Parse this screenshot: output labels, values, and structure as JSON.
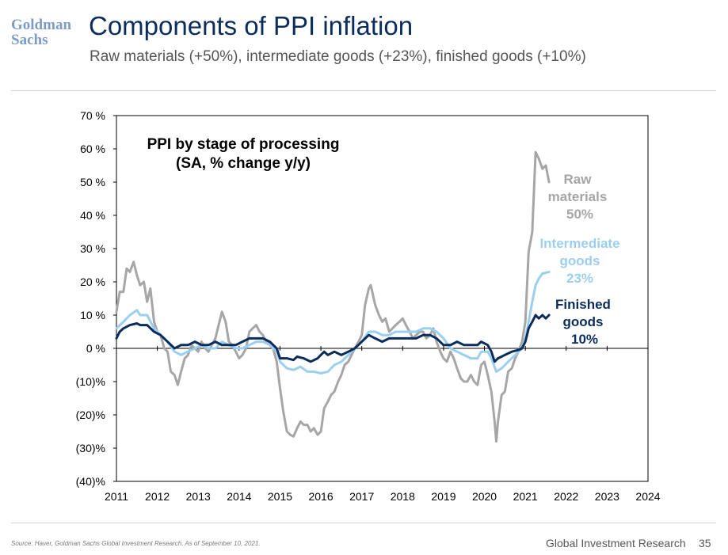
{
  "header": {
    "logo_line1": "Goldman",
    "logo_line2": "Sachs",
    "title": "Components of PPI inflation",
    "subtitle": "Raw materials (+50%), intermediate goods (+23%), finished goods (+10%)"
  },
  "footer": {
    "source": "Source: Haver, Goldman Sachs Global Investment Research. As of September 10, 2021.",
    "division": "Global Investment Research",
    "page_number": "35"
  },
  "colors": {
    "raw": "#a6a6a6",
    "intermediate": "#9ccfef",
    "finished": "#0b2d5c"
  },
  "chart_data": {
    "type": "line",
    "title_lines": [
      "PPI by stage of processing",
      "(SA, % change y/y)"
    ],
    "x_ticks": [
      "2011",
      "2012",
      "2013",
      "2014",
      "2015",
      "2016",
      "2017",
      "2018",
      "2019",
      "2020",
      "2021",
      "2022",
      "2023",
      "2024"
    ],
    "xlim": [
      2011,
      2024
    ],
    "y_ticks": [
      {
        "value": 70,
        "label": "70 %"
      },
      {
        "value": 60,
        "label": "60 %"
      },
      {
        "value": 50,
        "label": "50 %"
      },
      {
        "value": 40,
        "label": "40 %"
      },
      {
        "value": 30,
        "label": "30 %"
      },
      {
        "value": 20,
        "label": "20 %"
      },
      {
        "value": 10,
        "label": "10 %"
      },
      {
        "value": 0,
        "label": "0 %"
      },
      {
        "value": -10,
        "label": "(10)%"
      },
      {
        "value": -20,
        "label": "(20)%"
      },
      {
        "value": -30,
        "label": "(30)%"
      },
      {
        "value": -40,
        "label": "(40)%"
      }
    ],
    "ylim": [
      -40,
      70
    ],
    "series": [
      {
        "key": "raw",
        "label_lines": [
          "Raw",
          "materials",
          "50%"
        ],
        "points": [
          [
            2011.0,
            11
          ],
          [
            2011.08,
            17
          ],
          [
            2011.17,
            17
          ],
          [
            2011.25,
            24
          ],
          [
            2011.33,
            23
          ],
          [
            2011.42,
            26
          ],
          [
            2011.5,
            22
          ],
          [
            2011.58,
            19
          ],
          [
            2011.67,
            20
          ],
          [
            2011.75,
            14
          ],
          [
            2011.83,
            18
          ],
          [
            2011.92,
            8
          ],
          [
            2012.0,
            5
          ],
          [
            2012.08,
            4
          ],
          [
            2012.17,
            0
          ],
          [
            2012.25,
            -1
          ],
          [
            2012.33,
            -7
          ],
          [
            2012.42,
            -8
          ],
          [
            2012.5,
            -11
          ],
          [
            2012.58,
            -7
          ],
          [
            2012.67,
            -3
          ],
          [
            2012.75,
            -2
          ],
          [
            2012.83,
            1
          ],
          [
            2012.92,
            0
          ],
          [
            2013.0,
            -1
          ],
          [
            2013.08,
            2
          ],
          [
            2013.17,
            0
          ],
          [
            2013.25,
            -1
          ],
          [
            2013.33,
            1
          ],
          [
            2013.42,
            3
          ],
          [
            2013.5,
            7
          ],
          [
            2013.58,
            11
          ],
          [
            2013.67,
            8
          ],
          [
            2013.75,
            2
          ],
          [
            2013.83,
            1
          ],
          [
            2013.92,
            -1
          ],
          [
            2014.0,
            -3
          ],
          [
            2014.08,
            -2
          ],
          [
            2014.17,
            0
          ],
          [
            2014.25,
            5
          ],
          [
            2014.33,
            6
          ],
          [
            2014.42,
            7
          ],
          [
            2014.5,
            5
          ],
          [
            2014.58,
            4
          ],
          [
            2014.67,
            2
          ],
          [
            2014.75,
            1
          ],
          [
            2014.83,
            0
          ],
          [
            2014.92,
            -4
          ],
          [
            2015.0,
            -12
          ],
          [
            2015.08,
            -19
          ],
          [
            2015.17,
            -25
          ],
          [
            2015.25,
            -26
          ],
          [
            2015.33,
            -26.5
          ],
          [
            2015.42,
            -24
          ],
          [
            2015.5,
            -22
          ],
          [
            2015.58,
            -23
          ],
          [
            2015.67,
            -23
          ],
          [
            2015.75,
            -25
          ],
          [
            2015.83,
            -24
          ],
          [
            2015.92,
            -26
          ],
          [
            2016.0,
            -25
          ],
          [
            2016.08,
            -18
          ],
          [
            2016.17,
            -16
          ],
          [
            2016.25,
            -14
          ],
          [
            2016.33,
            -13
          ],
          [
            2016.42,
            -10
          ],
          [
            2016.5,
            -8
          ],
          [
            2016.58,
            -5
          ],
          [
            2016.67,
            -4
          ],
          [
            2016.75,
            -2
          ],
          [
            2016.83,
            0
          ],
          [
            2016.92,
            2
          ],
          [
            2017.0,
            4
          ],
          [
            2017.08,
            13
          ],
          [
            2017.17,
            18
          ],
          [
            2017.22,
            19
          ],
          [
            2017.33,
            13
          ],
          [
            2017.42,
            10
          ],
          [
            2017.5,
            8
          ],
          [
            2017.58,
            9
          ],
          [
            2017.67,
            5
          ],
          [
            2017.75,
            6
          ],
          [
            2017.83,
            7
          ],
          [
            2017.92,
            8
          ],
          [
            2018.0,
            9
          ],
          [
            2018.08,
            7
          ],
          [
            2018.17,
            5
          ],
          [
            2018.25,
            3
          ],
          [
            2018.33,
            4
          ],
          [
            2018.42,
            5
          ],
          [
            2018.5,
            5
          ],
          [
            2018.58,
            3
          ],
          [
            2018.67,
            4
          ],
          [
            2018.75,
            6
          ],
          [
            2018.83,
            2
          ],
          [
            2018.92,
            -1
          ],
          [
            2019.0,
            -3
          ],
          [
            2019.08,
            -4
          ],
          [
            2019.17,
            -1
          ],
          [
            2019.25,
            -3
          ],
          [
            2019.33,
            -6
          ],
          [
            2019.42,
            -9
          ],
          [
            2019.5,
            -10
          ],
          [
            2019.58,
            -10
          ],
          [
            2019.67,
            -8
          ],
          [
            2019.75,
            -10
          ],
          [
            2019.83,
            -11
          ],
          [
            2019.92,
            -5
          ],
          [
            2020.0,
            -4
          ],
          [
            2020.08,
            -8
          ],
          [
            2020.17,
            -13
          ],
          [
            2020.25,
            -22
          ],
          [
            2020.29,
            -28
          ],
          [
            2020.33,
            -22
          ],
          [
            2020.42,
            -14
          ],
          [
            2020.5,
            -13
          ],
          [
            2020.58,
            -7
          ],
          [
            2020.67,
            -6
          ],
          [
            2020.75,
            -3
          ],
          [
            2020.83,
            -1
          ],
          [
            2020.92,
            2
          ],
          [
            2021.0,
            8
          ],
          [
            2021.08,
            29
          ],
          [
            2021.17,
            35
          ],
          [
            2021.25,
            59
          ],
          [
            2021.33,
            57
          ],
          [
            2021.42,
            54
          ],
          [
            2021.5,
            55
          ],
          [
            2021.58,
            50
          ]
        ]
      },
      {
        "key": "intermediate",
        "label_lines": [
          "Intermediate",
          "goods",
          "23%"
        ],
        "points": [
          [
            2011.0,
            6
          ],
          [
            2011.17,
            8
          ],
          [
            2011.33,
            10
          ],
          [
            2011.5,
            11.5
          ],
          [
            2011.58,
            10
          ],
          [
            2011.75,
            10
          ],
          [
            2011.92,
            6
          ],
          [
            2012.08,
            4
          ],
          [
            2012.25,
            2
          ],
          [
            2012.42,
            -1
          ],
          [
            2012.58,
            -2
          ],
          [
            2012.75,
            -1
          ],
          [
            2012.92,
            0
          ],
          [
            2013.08,
            1
          ],
          [
            2013.25,
            0
          ],
          [
            2013.42,
            0
          ],
          [
            2013.58,
            2
          ],
          [
            2013.75,
            1
          ],
          [
            2013.92,
            0
          ],
          [
            2014.08,
            0
          ],
          [
            2014.25,
            1
          ],
          [
            2014.42,
            2
          ],
          [
            2014.58,
            2
          ],
          [
            2014.75,
            1
          ],
          [
            2014.92,
            -1
          ],
          [
            2015.0,
            -4
          ],
          [
            2015.17,
            -6
          ],
          [
            2015.33,
            -6.5
          ],
          [
            2015.5,
            -5.5
          ],
          [
            2015.67,
            -7
          ],
          [
            2015.83,
            -7
          ],
          [
            2016.0,
            -7.5
          ],
          [
            2016.17,
            -7
          ],
          [
            2016.33,
            -5
          ],
          [
            2016.5,
            -4
          ],
          [
            2016.67,
            -2
          ],
          [
            2016.83,
            0
          ],
          [
            2017.0,
            2
          ],
          [
            2017.17,
            5
          ],
          [
            2017.33,
            5
          ],
          [
            2017.5,
            4
          ],
          [
            2017.67,
            4
          ],
          [
            2017.83,
            5
          ],
          [
            2018.0,
            5
          ],
          [
            2018.17,
            5
          ],
          [
            2018.33,
            5
          ],
          [
            2018.5,
            6
          ],
          [
            2018.67,
            6
          ],
          [
            2018.83,
            5
          ],
          [
            2019.0,
            3
          ],
          [
            2019.17,
            0
          ],
          [
            2019.33,
            -1
          ],
          [
            2019.5,
            -2
          ],
          [
            2019.67,
            -3
          ],
          [
            2019.83,
            -3
          ],
          [
            2019.92,
            -1
          ],
          [
            2020.08,
            -1
          ],
          [
            2020.17,
            -3
          ],
          [
            2020.29,
            -7
          ],
          [
            2020.42,
            -6
          ],
          [
            2020.58,
            -4
          ],
          [
            2020.75,
            -2
          ],
          [
            2020.92,
            0
          ],
          [
            2021.0,
            3
          ],
          [
            2021.08,
            8
          ],
          [
            2021.17,
            14
          ],
          [
            2021.25,
            19
          ],
          [
            2021.33,
            21
          ],
          [
            2021.42,
            22.5
          ],
          [
            2021.58,
            23
          ]
        ]
      },
      {
        "key": "finished",
        "label_lines": [
          "Finished",
          "goods",
          "10%"
        ],
        "points": [
          [
            2011.0,
            3
          ],
          [
            2011.08,
            5
          ],
          [
            2011.17,
            6
          ],
          [
            2011.33,
            7
          ],
          [
            2011.5,
            7.5
          ],
          [
            2011.58,
            7
          ],
          [
            2011.75,
            7
          ],
          [
            2011.92,
            5
          ],
          [
            2012.08,
            4
          ],
          [
            2012.25,
            2
          ],
          [
            2012.42,
            0
          ],
          [
            2012.58,
            1
          ],
          [
            2012.75,
            1
          ],
          [
            2012.92,
            2
          ],
          [
            2013.08,
            1
          ],
          [
            2013.25,
            1
          ],
          [
            2013.42,
            2
          ],
          [
            2013.58,
            1
          ],
          [
            2013.75,
            1
          ],
          [
            2013.92,
            1
          ],
          [
            2014.08,
            2
          ],
          [
            2014.25,
            3
          ],
          [
            2014.42,
            3
          ],
          [
            2014.58,
            3
          ],
          [
            2014.75,
            2
          ],
          [
            2014.92,
            0
          ],
          [
            2015.0,
            -3
          ],
          [
            2015.17,
            -3
          ],
          [
            2015.33,
            -3.5
          ],
          [
            2015.42,
            -2.5
          ],
          [
            2015.58,
            -3
          ],
          [
            2015.75,
            -4
          ],
          [
            2015.92,
            -3
          ],
          [
            2016.08,
            -1
          ],
          [
            2016.17,
            -2
          ],
          [
            2016.33,
            -1
          ],
          [
            2016.5,
            -2
          ],
          [
            2016.67,
            -1
          ],
          [
            2016.83,
            0
          ],
          [
            2017.0,
            2
          ],
          [
            2017.17,
            4
          ],
          [
            2017.33,
            3
          ],
          [
            2017.5,
            2
          ],
          [
            2017.67,
            3
          ],
          [
            2017.83,
            3
          ],
          [
            2018.0,
            3
          ],
          [
            2018.17,
            3
          ],
          [
            2018.33,
            3
          ],
          [
            2018.5,
            4
          ],
          [
            2018.67,
            4
          ],
          [
            2018.83,
            3
          ],
          [
            2019.0,
            1
          ],
          [
            2019.17,
            1
          ],
          [
            2019.33,
            2
          ],
          [
            2019.5,
            1
          ],
          [
            2019.67,
            1
          ],
          [
            2019.83,
            1
          ],
          [
            2019.92,
            2
          ],
          [
            2020.08,
            1
          ],
          [
            2020.17,
            -1
          ],
          [
            2020.25,
            -4
          ],
          [
            2020.33,
            -3
          ],
          [
            2020.5,
            -2
          ],
          [
            2020.67,
            -1
          ],
          [
            2020.83,
            -0.5
          ],
          [
            2020.92,
            0
          ],
          [
            2021.0,
            2
          ],
          [
            2021.08,
            6
          ],
          [
            2021.17,
            8
          ],
          [
            2021.25,
            10
          ],
          [
            2021.33,
            9
          ],
          [
            2021.42,
            10
          ],
          [
            2021.5,
            9
          ],
          [
            2021.58,
            10
          ]
        ]
      }
    ]
  }
}
